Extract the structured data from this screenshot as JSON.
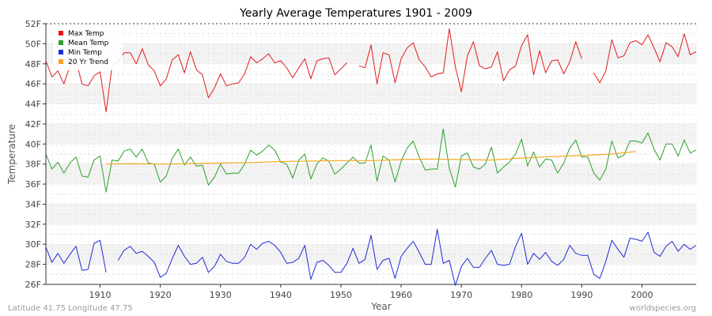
{
  "chart_data": {
    "type": "line",
    "title": "Yearly Average Temperatures 1901 - 2009",
    "xlabel": "Year",
    "ylabel": "Temperature",
    "xlim": [
      1901,
      2009
    ],
    "ylim": [
      26,
      52
    ],
    "x_ticks": [
      1910,
      1920,
      1930,
      1940,
      1950,
      1960,
      1970,
      1980,
      1990,
      2000
    ],
    "y_ticks": [
      "26F",
      "28F",
      "30F",
      "32F",
      "34F",
      "36F",
      "38F",
      "40F",
      "42F",
      "44F",
      "46F",
      "48F",
      "50F",
      "52F"
    ],
    "grid": true,
    "legend_position": "top-left",
    "series": [
      {
        "name": "Max Temp",
        "color": "#e31a1c",
        "x": [
          1901,
          1902,
          1903,
          1904,
          1905,
          1906,
          1907,
          1908,
          1909,
          1910,
          1911,
          1912,
          1913,
          1914,
          1915,
          1916,
          1917,
          1918,
          1919,
          1920,
          1921,
          1922,
          1923,
          1924,
          1925,
          1926,
          1927,
          1928,
          1929,
          1930,
          1931,
          1932,
          1933,
          1934,
          1935,
          1936,
          1937,
          1938,
          1939,
          1940,
          1941,
          1942,
          1943,
          1944,
          1945,
          1946,
          1947,
          1948,
          1949,
          1950,
          1951,
          1953,
          1954,
          1955,
          1956,
          1957,
          1958,
          1959,
          1960,
          1961,
          1962,
          1963,
          1964,
          1965,
          1966,
          1967,
          1968,
          1969,
          1970,
          1971,
          1972,
          1973,
          1974,
          1975,
          1976,
          1977,
          1978,
          1979,
          1980,
          1981,
          1982,
          1983,
          1984,
          1985,
          1986,
          1987,
          1988,
          1989,
          1990,
          1992,
          1993,
          1994,
          1995,
          1996,
          1997,
          1998,
          1999,
          2000,
          2001,
          2002,
          2003,
          2004,
          2005,
          2006,
          2007,
          2008,
          2009
        ],
        "values": [
          48.3,
          46.7,
          47.3,
          46.0,
          47.8,
          48.3,
          46.0,
          45.8,
          46.8,
          47.2,
          43.2,
          47.8,
          48.2,
          49.1,
          49.1,
          48.0,
          49.5,
          47.9,
          47.3,
          45.8,
          46.5,
          48.4,
          48.9,
          47.1,
          49.2,
          47.4,
          46.9,
          44.6,
          45.6,
          47.0,
          45.8,
          46.0,
          46.1,
          47.0,
          48.7,
          48.1,
          48.5,
          49.0,
          48.1,
          48.3,
          47.6,
          46.6,
          47.6,
          48.5,
          46.5,
          48.3,
          48.5,
          48.6,
          46.9,
          47.5,
          48.1,
          47.8,
          47.6,
          49.9,
          46.0,
          49.1,
          48.9,
          46.1,
          48.5,
          49.6,
          50.1,
          48.4,
          47.7,
          46.7,
          47.0,
          47.1,
          51.5,
          47.7,
          45.2,
          48.8,
          50.2,
          47.8,
          47.5,
          47.7,
          49.2,
          46.3,
          47.4,
          47.8,
          49.8,
          50.9,
          46.9,
          49.3,
          47.1,
          48.3,
          48.4,
          47.0,
          48.2,
          50.2,
          48.5,
          47.1,
          46.1,
          47.3,
          50.4,
          48.6,
          48.8,
          50.1,
          50.3,
          49.9,
          50.9,
          49.6,
          48.2,
          50.1,
          49.7,
          48.7,
          51.0,
          48.9,
          49.2
        ]
      },
      {
        "name": "Mean Temp",
        "color": "#2ca02c",
        "x": [
          1901,
          1902,
          1903,
          1904,
          1905,
          1906,
          1907,
          1908,
          1909,
          1910,
          1911,
          1912,
          1913,
          1914,
          1915,
          1916,
          1917,
          1918,
          1919,
          1920,
          1921,
          1922,
          1923,
          1924,
          1925,
          1926,
          1927,
          1928,
          1929,
          1930,
          1931,
          1932,
          1933,
          1934,
          1935,
          1936,
          1937,
          1938,
          1939,
          1940,
          1941,
          1942,
          1943,
          1944,
          1945,
          1946,
          1947,
          1948,
          1949,
          1950,
          1951,
          1952,
          1953,
          1954,
          1955,
          1956,
          1957,
          1958,
          1959,
          1960,
          1961,
          1962,
          1963,
          1964,
          1965,
          1966,
          1967,
          1968,
          1969,
          1970,
          1971,
          1972,
          1973,
          1974,
          1975,
          1976,
          1977,
          1978,
          1979,
          1980,
          1981,
          1982,
          1983,
          1984,
          1985,
          1986,
          1987,
          1988,
          1989,
          1990,
          1991,
          1992,
          1993,
          1994,
          1995,
          1996,
          1997,
          1998,
          1999,
          2000,
          2001,
          2002,
          2003,
          2004,
          2005,
          2006,
          2007,
          2008,
          2009
        ],
        "values": [
          39.0,
          37.5,
          38.2,
          37.1,
          38.1,
          38.7,
          36.8,
          36.7,
          38.4,
          38.8,
          35.2,
          38.4,
          38.3,
          39.3,
          39.5,
          38.7,
          39.5,
          38.1,
          38.0,
          36.2,
          36.8,
          38.6,
          39.5,
          37.9,
          38.7,
          37.8,
          37.9,
          35.9,
          36.7,
          38.0,
          37.0,
          37.1,
          37.1,
          38.0,
          39.4,
          38.9,
          39.3,
          39.9,
          39.4,
          38.2,
          38.0,
          36.6,
          38.4,
          39.0,
          36.5,
          38.0,
          38.6,
          38.3,
          37.0,
          37.5,
          38.1,
          38.7,
          38.1,
          38.1,
          39.9,
          36.3,
          38.8,
          38.4,
          36.2,
          38.3,
          39.6,
          40.3,
          38.7,
          37.4,
          37.5,
          37.5,
          41.5,
          37.6,
          35.7,
          38.8,
          39.1,
          37.7,
          37.5,
          38.0,
          39.7,
          37.1,
          37.7,
          38.2,
          39.0,
          40.5,
          37.8,
          39.2,
          37.7,
          38.5,
          38.4,
          37.1,
          38.1,
          39.6,
          40.4,
          38.7,
          38.7,
          37.1,
          36.4,
          37.5,
          40.3,
          38.6,
          38.9,
          40.3,
          40.3,
          40.1,
          41.1,
          39.5,
          38.4,
          40.0,
          40.0,
          38.8,
          40.4,
          39.1,
          39.4
        ]
      },
      {
        "name": "Min Temp",
        "color": "#1f2bd6",
        "x": [
          1901,
          1902,
          1903,
          1904,
          1905,
          1906,
          1907,
          1908,
          1909,
          1910,
          1911,
          1913,
          1914,
          1915,
          1916,
          1917,
          1918,
          1919,
          1920,
          1921,
          1922,
          1923,
          1924,
          1925,
          1926,
          1927,
          1928,
          1929,
          1930,
          1931,
          1932,
          1933,
          1934,
          1935,
          1936,
          1937,
          1938,
          1939,
          1940,
          1941,
          1942,
          1943,
          1944,
          1945,
          1946,
          1947,
          1948,
          1949,
          1950,
          1951,
          1952,
          1953,
          1954,
          1955,
          1956,
          1957,
          1958,
          1959,
          1960,
          1961,
          1962,
          1963,
          1964,
          1965,
          1966,
          1967,
          1968,
          1969,
          1970,
          1971,
          1972,
          1973,
          1974,
          1975,
          1976,
          1977,
          1978,
          1979,
          1980,
          1981,
          1982,
          1983,
          1984,
          1985,
          1986,
          1987,
          1988,
          1989,
          1990,
          1991,
          1992,
          1993,
          1994,
          1995,
          1996,
          1997,
          1998,
          1999,
          2000,
          2001,
          2002,
          2003,
          2004,
          2005,
          2006,
          2007,
          2008,
          2009
        ],
        "values": [
          29.7,
          28.2,
          29.1,
          28.1,
          29.0,
          29.8,
          27.4,
          27.5,
          30.1,
          30.4,
          27.2,
          28.4,
          29.4,
          29.8,
          29.1,
          29.3,
          28.8,
          28.2,
          26.7,
          27.1,
          28.6,
          29.9,
          28.8,
          28.0,
          28.1,
          28.7,
          27.2,
          27.8,
          29.0,
          28.3,
          28.1,
          28.1,
          28.7,
          30.0,
          29.5,
          30.1,
          30.3,
          29.9,
          29.2,
          28.1,
          28.2,
          28.6,
          29.9,
          26.5,
          28.2,
          28.4,
          27.9,
          27.2,
          27.2,
          28.1,
          29.6,
          28.1,
          28.5,
          30.9,
          27.5,
          28.4,
          28.6,
          26.6,
          28.8,
          29.6,
          30.3,
          29.2,
          28.0,
          28.0,
          31.5,
          28.1,
          28.4,
          25.9,
          27.8,
          28.6,
          27.7,
          27.7,
          28.6,
          29.4,
          28.0,
          27.9,
          28.0,
          29.8,
          31.1,
          28.0,
          29.1,
          28.5,
          29.2,
          28.3,
          27.9,
          28.5,
          29.9,
          29.1,
          28.9,
          28.9,
          27.0,
          26.6,
          28.3,
          30.4,
          29.5,
          28.7,
          30.6,
          30.5,
          30.3,
          31.2,
          29.2,
          28.8,
          29.8,
          30.3,
          29.3,
          30.0,
          29.5,
          29.9
        ]
      },
      {
        "name": "20 Yr Trend",
        "color": "#f5a623",
        "x": [
          1911,
          1915,
          1920,
          1925,
          1930,
          1935,
          1940,
          1945,
          1950,
          1955,
          1960,
          1965,
          1970,
          1975,
          1980,
          1985,
          1990,
          1995,
          1999
        ],
        "values": [
          38.0,
          38.05,
          38.0,
          38.05,
          38.1,
          38.15,
          38.25,
          38.3,
          38.35,
          38.35,
          38.45,
          38.5,
          38.45,
          38.4,
          38.6,
          38.75,
          38.85,
          39.0,
          39.25
        ]
      }
    ]
  },
  "footer": {
    "left": "Latitude 41.75 Longitude 47.75",
    "right": "worldspecies.org"
  }
}
